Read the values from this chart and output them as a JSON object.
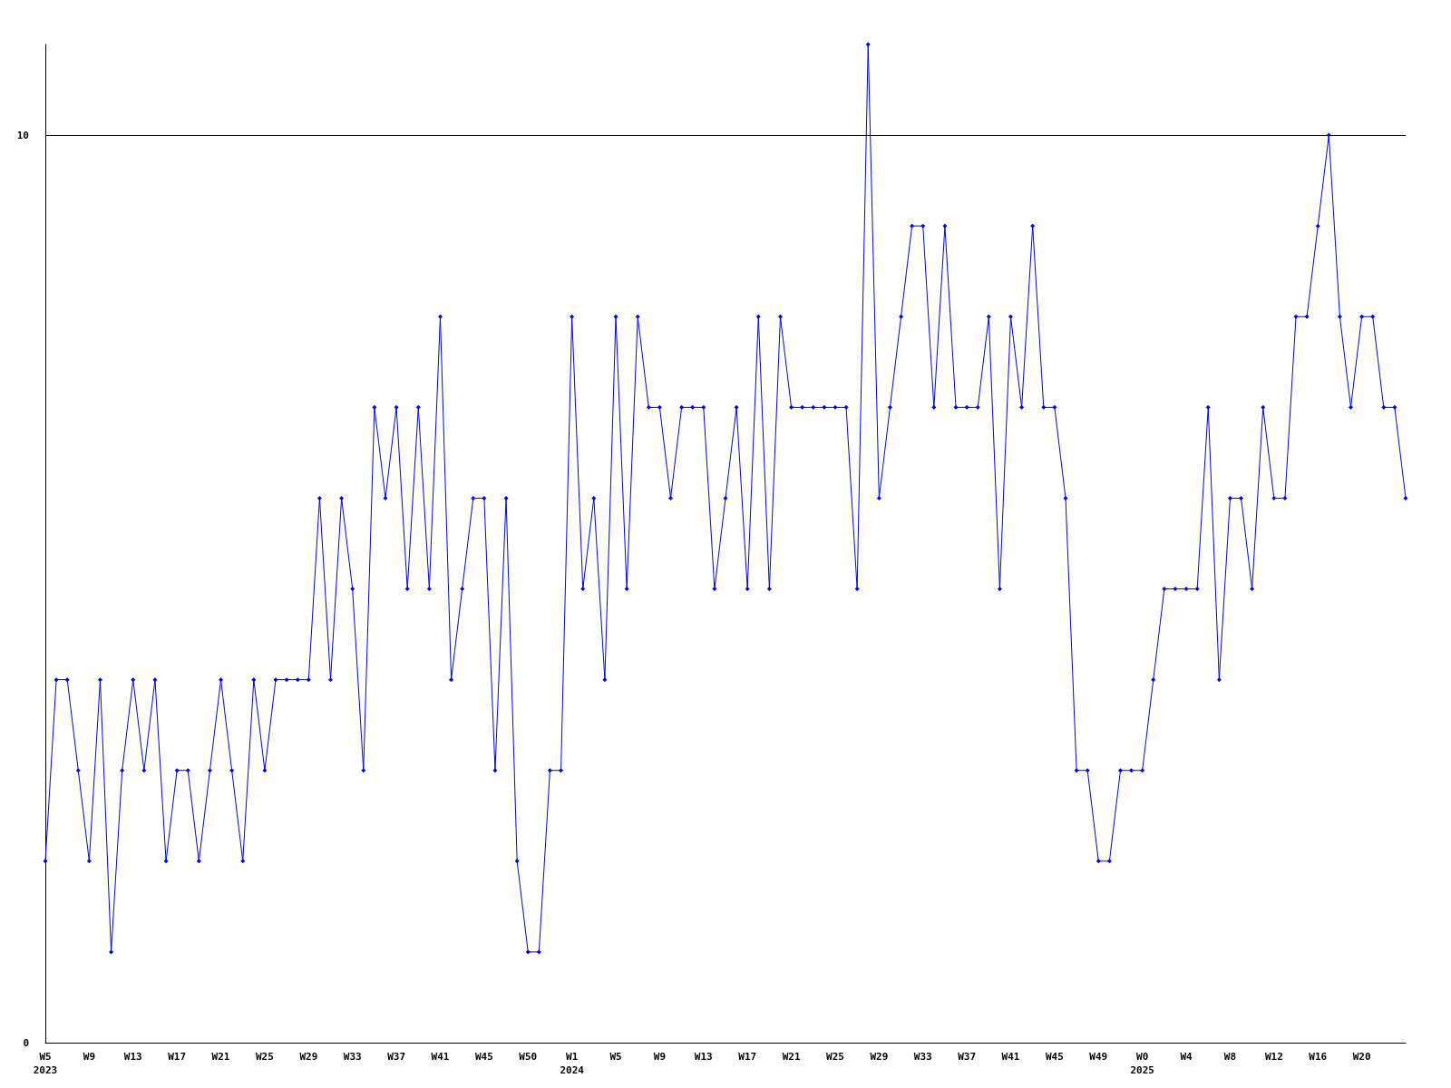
{
  "chart_data": {
    "type": "line",
    "categories": [
      "W5\n2023",
      null,
      null,
      null,
      "W9",
      null,
      null,
      null,
      "W13",
      null,
      null,
      null,
      "W17",
      null,
      null,
      null,
      "W21",
      null,
      null,
      null,
      "W25",
      null,
      null,
      null,
      "W29",
      null,
      null,
      null,
      "W33",
      null,
      null,
      null,
      "W37",
      null,
      null,
      null,
      "W41",
      null,
      null,
      null,
      "W45",
      null,
      null,
      null,
      "W50",
      null,
      null,
      null,
      "W1\n2024",
      null,
      null,
      null,
      "W5",
      null,
      null,
      null,
      "W9",
      null,
      null,
      null,
      "W13",
      null,
      null,
      null,
      "W17",
      null,
      null,
      null,
      "W21",
      null,
      null,
      null,
      "W25",
      null,
      null,
      null,
      "W29",
      null,
      null,
      null,
      "W33",
      null,
      null,
      null,
      "W37",
      null,
      null,
      null,
      "W41",
      null,
      null,
      null,
      "W45",
      null,
      null,
      null,
      "W49",
      null,
      null,
      null,
      "W0\n2025",
      null,
      null,
      null,
      "W4",
      null,
      null,
      null,
      "W8",
      null,
      null,
      null,
      "W12",
      null,
      null,
      null,
      "W16",
      null,
      null,
      null,
      "W20",
      null,
      null,
      null,
      null
    ],
    "series": [
      {
        "color": "#0000ff",
        "values": [
          2,
          4,
          4,
          3,
          2,
          4,
          1,
          3,
          4,
          3,
          4,
          2,
          3,
          3,
          2,
          3,
          4,
          3,
          2,
          4,
          3,
          4,
          4,
          4,
          4,
          6,
          4,
          6,
          5,
          3,
          7,
          6,
          7,
          5,
          7,
          5,
          8,
          4,
          5,
          6,
          6,
          3,
          6,
          2,
          1,
          1,
          3,
          3,
          8,
          5,
          6,
          4,
          8,
          5,
          8,
          7,
          7,
          6,
          7,
          7,
          7,
          5,
          6,
          7,
          5,
          8,
          5,
          8,
          7,
          7,
          7,
          7,
          7,
          7,
          5,
          11,
          6,
          7,
          8,
          9,
          9,
          7,
          9,
          7,
          7,
          7,
          8,
          5,
          8,
          7,
          9,
          7,
          7,
          6,
          3,
          3,
          2,
          2,
          3,
          3,
          3,
          4,
          5,
          5,
          5,
          5,
          7,
          4,
          6,
          6,
          5,
          7,
          6,
          6,
          8,
          8,
          9,
          10,
          8,
          7,
          8,
          8,
          7,
          7,
          6
        ]
      }
    ],
    "ylim": [
      0,
      11
    ],
    "yticks": [
      0,
      10
    ],
    "grid": "y",
    "marker": "diamond",
    "line_style": "solid"
  }
}
